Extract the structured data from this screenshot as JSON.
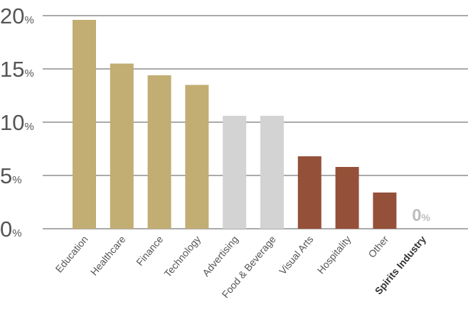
{
  "chart_data": {
    "type": "bar",
    "categories": [
      "Education",
      "Healthcare",
      "Finance",
      "Technology",
      "Advertising",
      "Food & Beverage",
      "Visual Arts",
      "Hospitality",
      "Other",
      "Spirits Industry"
    ],
    "values": [
      19.6,
      15.5,
      14.4,
      13.5,
      10.6,
      10.6,
      6.8,
      5.8,
      3.4,
      0
    ],
    "bar_colors": [
      "#c2ad72",
      "#c2ad72",
      "#c2ad72",
      "#c2ad72",
      "#d3d3d3",
      "#d3d3d3",
      "#955039",
      "#955039",
      "#955039",
      "#955039"
    ],
    "emphasized_category": "Spirits Industry",
    "zero_value_label": {
      "number": "0",
      "suffix": "%"
    },
    "yticks": [
      {
        "value": 0,
        "label": "0",
        "suffix": "%"
      },
      {
        "value": 5,
        "label": "5",
        "suffix": "%"
      },
      {
        "value": 10,
        "label": "10",
        "suffix": "%"
      },
      {
        "value": 15,
        "label": "15",
        "suffix": "%"
      },
      {
        "value": 20,
        "label": "20",
        "suffix": "%"
      }
    ],
    "ylim": [
      0,
      20
    ],
    "grid": true,
    "gridline_color": "#555555",
    "title": "",
    "xlabel": "",
    "ylabel": ""
  }
}
